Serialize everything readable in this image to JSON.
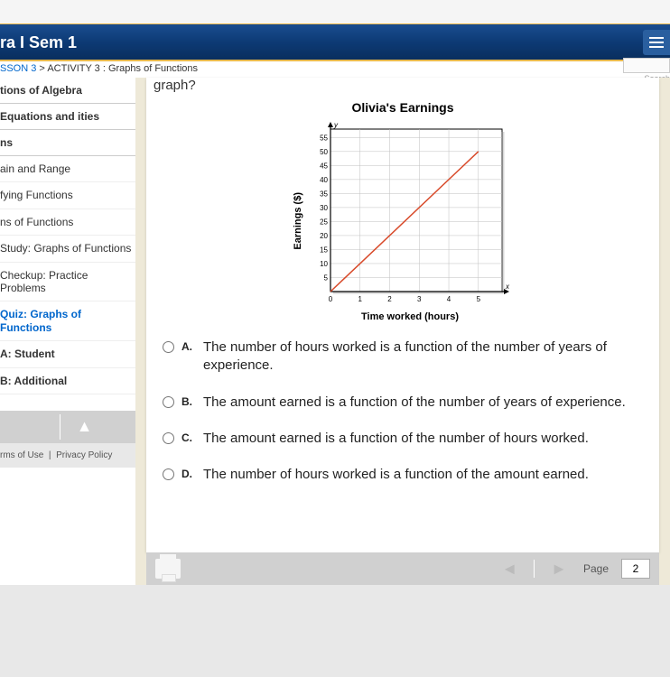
{
  "header": {
    "title": "ra I Sem 1"
  },
  "breadcrumb": {
    "link": "SSON 3",
    "sep": ">",
    "current": "ACTIVITY 3 : Graphs of Functions",
    "search_label": "Search"
  },
  "sidebar": {
    "sections": [
      "tions of Algebra",
      " Equations and ities",
      "ns"
    ],
    "items": [
      "ain and Range",
      "fying Functions",
      "ns of Functions",
      "Study: Graphs of Functions",
      "Checkup: Practice Problems",
      "Quiz: Graphs of Functions",
      "A: Student ",
      "B: Additional"
    ],
    "tree_icon": "▲"
  },
  "footer": {
    "terms": "rms of Use",
    "sep": "|",
    "privacy": "Privacy Policy"
  },
  "question": {
    "prompt_partial": "graph?",
    "chart": {
      "title": "Olivia's Earnings",
      "ylabel": "Earnings ($)",
      "xlabel": "Time worked (hours)",
      "y_axis_letter": "y",
      "x_axis_letter": "x",
      "xticks": [
        0,
        1,
        2,
        3,
        4,
        5
      ],
      "yticks": [
        5,
        10,
        15,
        20,
        25,
        30,
        35,
        40,
        45,
        50,
        55
      ],
      "line": {
        "x1": 0,
        "y1": 0,
        "x2": 5,
        "y2": 50,
        "color": "#d84a2a",
        "width": 1.5
      },
      "grid_color": "#bfbfbf",
      "bg_color": "#ffffff",
      "axis_color": "#000000",
      "tick_font": 8,
      "width": 190,
      "height": 180
    },
    "options": [
      {
        "letter": "A.",
        "text": "The number of hours worked is a function of the number of years of experience."
      },
      {
        "letter": "B.",
        "text": "The amount earned is a function of the number of years of experience."
      },
      {
        "letter": "C.",
        "text": "The amount earned is a function of the number of hours worked."
      },
      {
        "letter": "D.",
        "text": "The number of hours worked is a function of the amount earned."
      }
    ]
  },
  "pagination": {
    "label": "Page",
    "value": "2"
  }
}
